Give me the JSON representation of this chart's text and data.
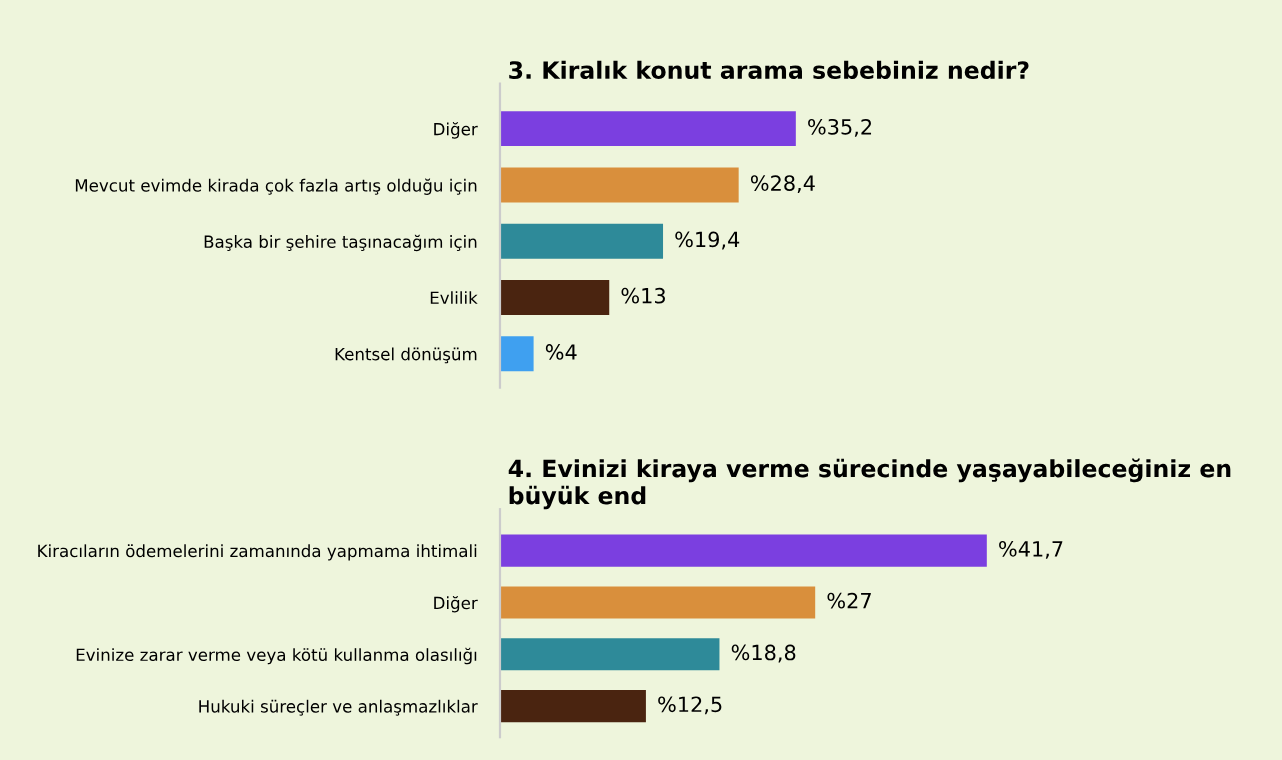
{
  "chart_data": [
    {
      "type": "bar",
      "orientation": "horizontal",
      "title": "3. Kiralık konut arama sebebiniz nedir?",
      "categories": [
        "Diğer",
        "Mevcut evimde kirada çok fazla artış olduğu için",
        "Başka bir şehire taşınacağım için",
        "Evlilik",
        "Kentsel dönüşüm"
      ],
      "values": [
        35.2,
        28.4,
        19.4,
        13,
        4
      ],
      "colors": [
        "#7b3fe0",
        "#d98f3c",
        "#2e8a99",
        "#4a2410",
        "#3fa0f0"
      ],
      "value_labels": [
        "%35,2",
        "%28,4",
        "%19,4",
        "%13",
        "%4"
      ]
    },
    {
      "type": "bar",
      "orientation": "horizontal",
      "title": "4. Evinizi kiraya verme sürecinde yaşayabileceğiniz en büyük end",
      "categories": [
        "Kiracıların ödemelerini zamanında yapmama ihtimali",
        "Diğer",
        "Evinize zarar verme veya kötü kullanma olasılığı",
        "Hukuki süreçler ve anlaşmazlıklar"
      ],
      "values": [
        41.7,
        27,
        18.8,
        12.5
      ],
      "colors": [
        "#7b3fe0",
        "#d98f3c",
        "#2e8a99",
        "#4a2410"
      ],
      "value_labels": [
        "%41,7",
        "%27",
        "%18,8",
        "%12,5"
      ]
    }
  ]
}
